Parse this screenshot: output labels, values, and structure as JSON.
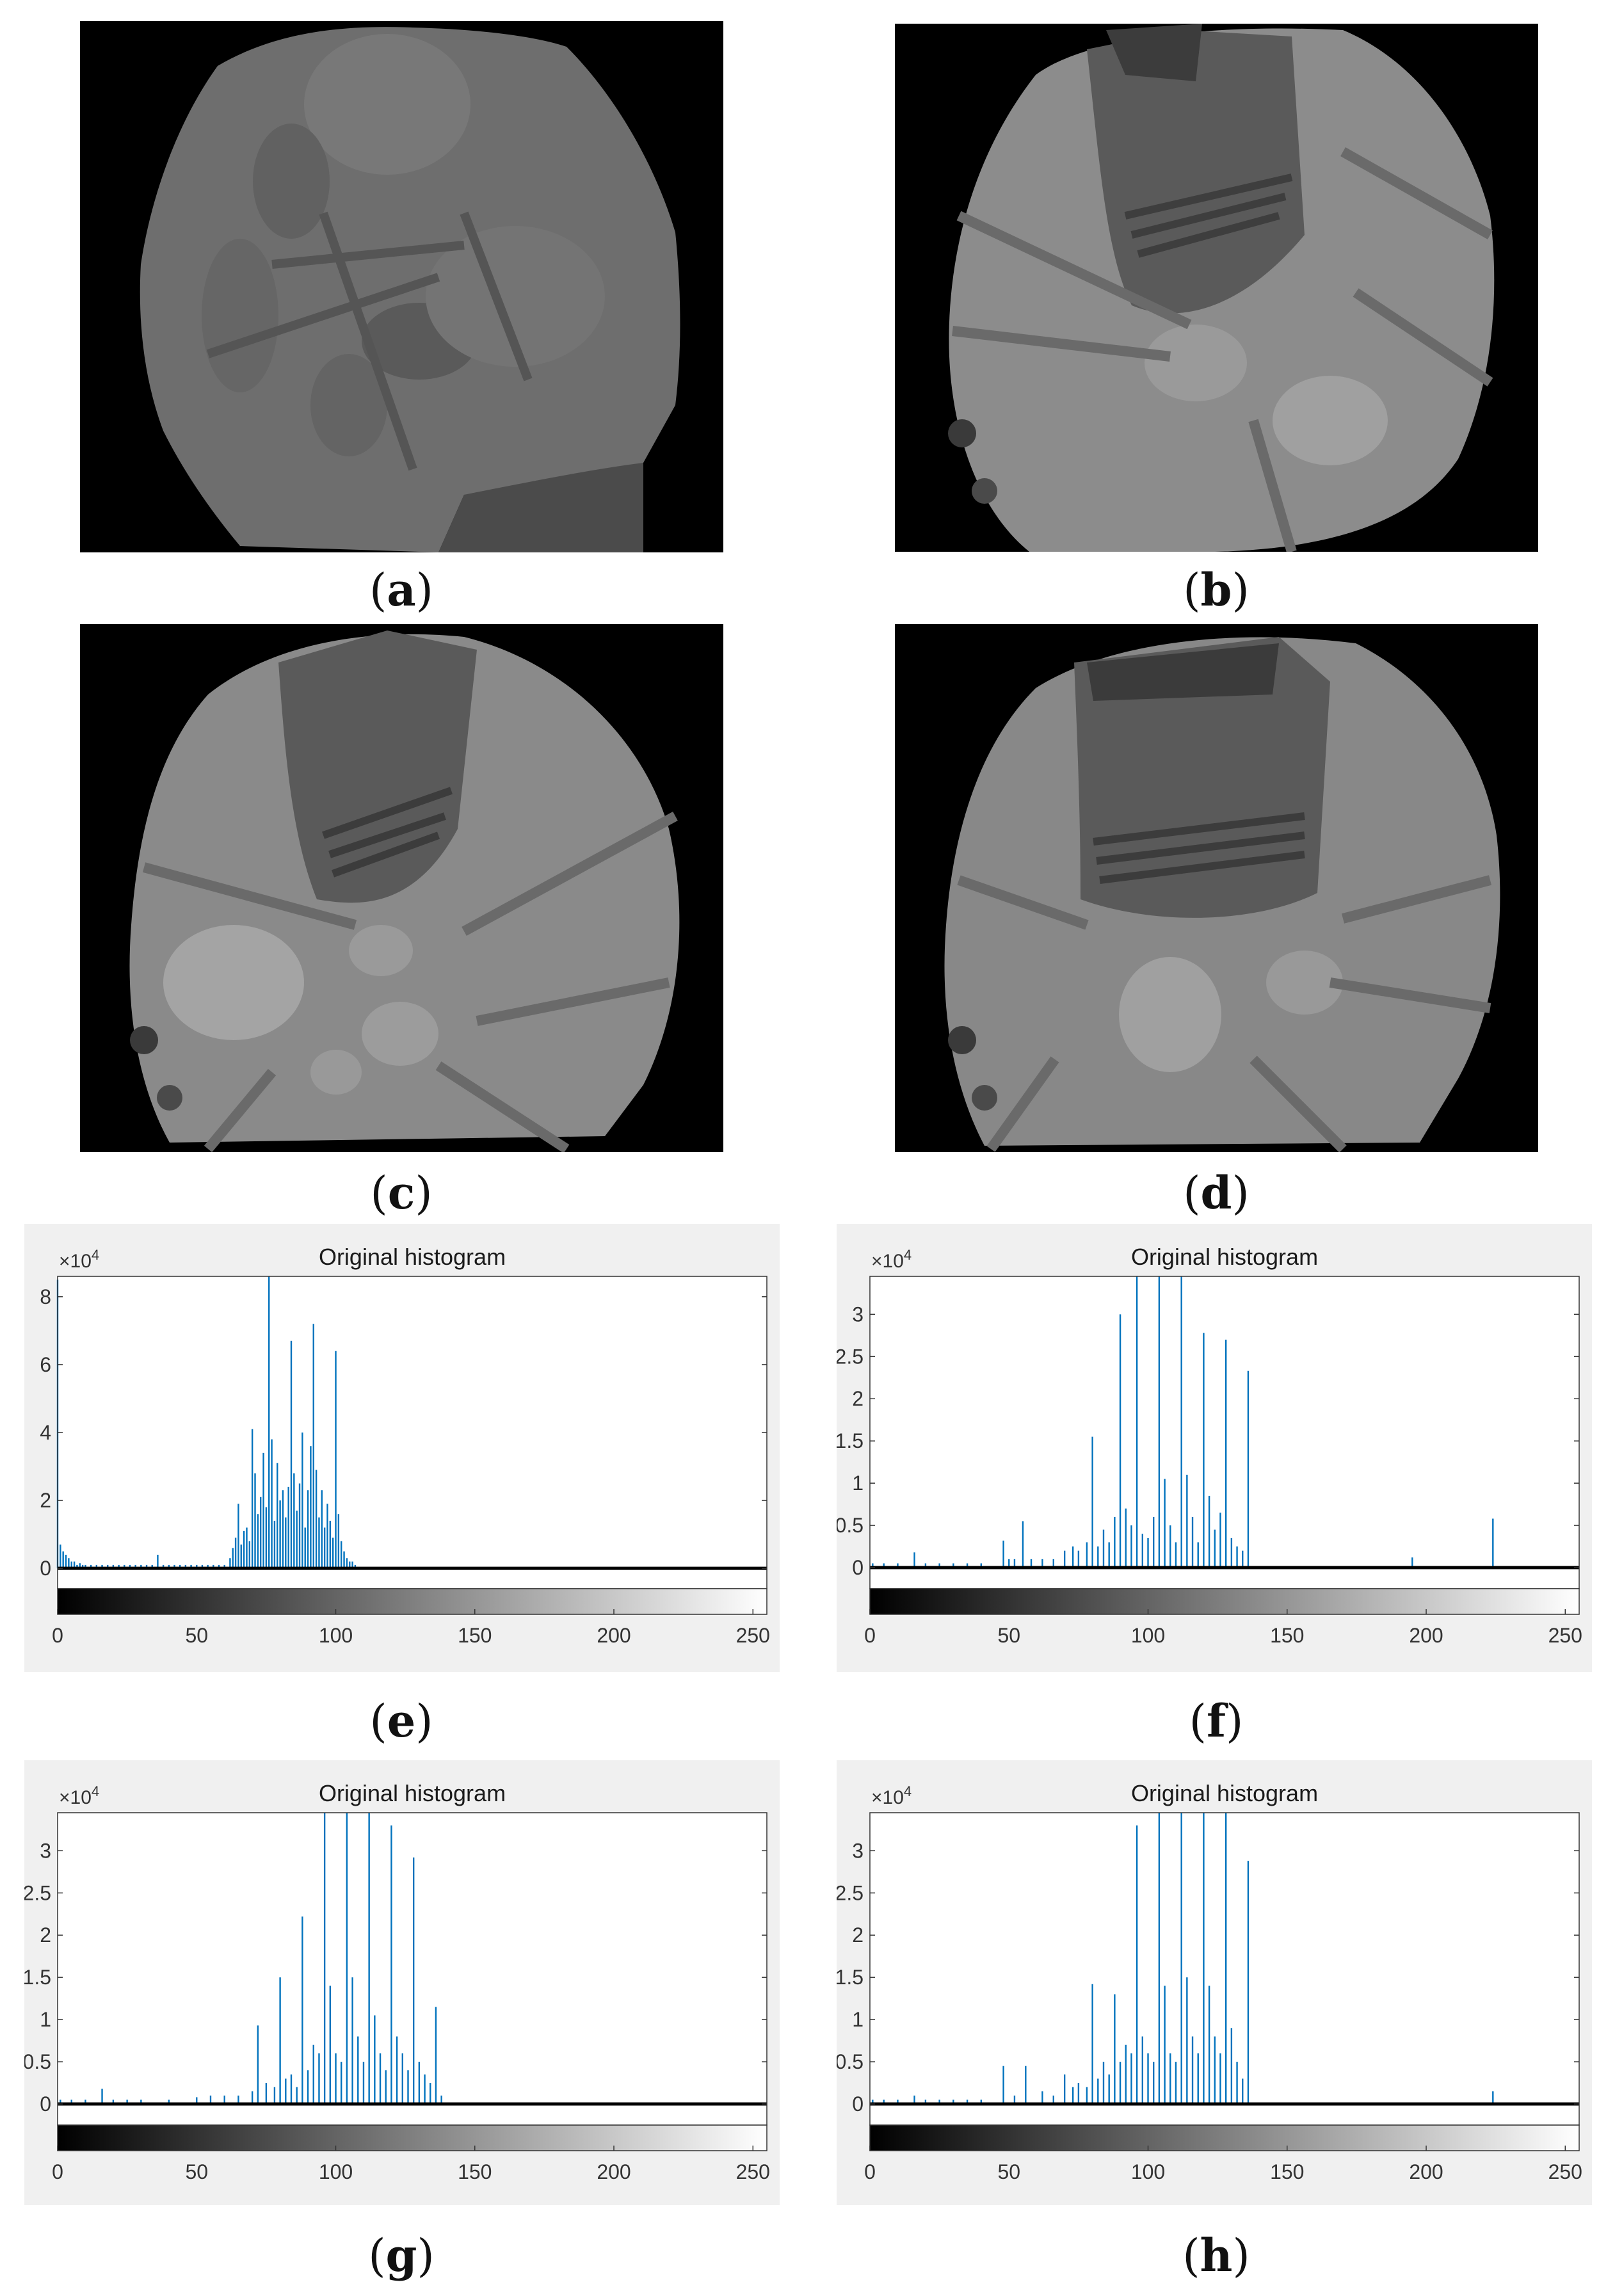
{
  "captions": {
    "a": "a",
    "b": "b",
    "c": "c",
    "d": "d",
    "e": "e",
    "f": "f",
    "g": "g",
    "h": "h"
  },
  "colors": {
    "bar": "#0072bd",
    "panel": "#f0f0f0",
    "photo_bg": "#000000"
  },
  "chart_data": [
    {
      "panel": "e",
      "type": "bar",
      "title": "Original histogram",
      "multiplier": "×10",
      "multiplier_exp": "4",
      "xlim": [
        0,
        255
      ],
      "ylim": [
        -0.6,
        8.6
      ],
      "xticks": [
        0,
        50,
        100,
        150,
        200,
        250
      ],
      "yticks": [
        0,
        2,
        4,
        6,
        8
      ],
      "ytick_labels": [
        "0",
        "2",
        "4",
        "6",
        "8"
      ],
      "bins": [
        0,
        1,
        2,
        3,
        4,
        5,
        6,
        7,
        8,
        9,
        10,
        12,
        14,
        16,
        18,
        20,
        22,
        24,
        26,
        28,
        30,
        32,
        34,
        36,
        38,
        40,
        42,
        44,
        46,
        48,
        50,
        52,
        54,
        56,
        58,
        60,
        62,
        63,
        64,
        65,
        66,
        67,
        68,
        69,
        70,
        71,
        72,
        73,
        74,
        75,
        76,
        77,
        78,
        79,
        80,
        81,
        82,
        83,
        84,
        85,
        86,
        87,
        88,
        89,
        90,
        91,
        92,
        93,
        94,
        95,
        96,
        97,
        98,
        99,
        100,
        101,
        102,
        103,
        104,
        105,
        106,
        107
      ],
      "values": [
        8.5,
        0.7,
        0.5,
        0.4,
        0.3,
        0.2,
        0.2,
        0.1,
        0.15,
        0.1,
        0.1,
        0.1,
        0.1,
        0.1,
        0.1,
        0.1,
        0.1,
        0.1,
        0.1,
        0.1,
        0.1,
        0.1,
        0.1,
        0.4,
        0.1,
        0.1,
        0.1,
        0.1,
        0.1,
        0.1,
        0.1,
        0.1,
        0.1,
        0.1,
        0.1,
        0.1,
        0.3,
        0.6,
        0.9,
        1.9,
        0.7,
        1.1,
        1.2,
        0.8,
        4.1,
        2.8,
        1.6,
        2.1,
        3.4,
        1.8,
        8.6,
        3.8,
        1.4,
        3.1,
        2.0,
        2.3,
        1.5,
        2.4,
        6.7,
        2.8,
        1.7,
        2.5,
        4.0,
        1.2,
        2.3,
        3.6,
        7.2,
        2.9,
        1.5,
        2.3,
        1.2,
        1.9,
        1.4,
        0.9,
        6.4,
        1.6,
        0.8,
        0.5,
        0.3,
        0.2,
        0.2,
        0.1
      ]
    },
    {
      "panel": "f",
      "type": "bar",
      "title": "Original histogram",
      "multiplier": "×10",
      "multiplier_exp": "4",
      "xlim": [
        0,
        255
      ],
      "ylim": [
        -0.25,
        3.45
      ],
      "xticks": [
        0,
        50,
        100,
        150,
        200,
        250
      ],
      "yticks": [
        0,
        0.5,
        1,
        1.5,
        2,
        2.5,
        3
      ],
      "ytick_labels": [
        "0",
        "0.5",
        "1",
        "1.5",
        "2",
        "2.5",
        "3"
      ],
      "bins": [
        1,
        5,
        10,
        16,
        20,
        25,
        30,
        35,
        40,
        48,
        50,
        52,
        55,
        58,
        62,
        66,
        70,
        73,
        75,
        78,
        80,
        82,
        84,
        86,
        88,
        90,
        92,
        94,
        96,
        98,
        100,
        102,
        104,
        106,
        108,
        110,
        112,
        114,
        116,
        118,
        120,
        122,
        124,
        126,
        128,
        130,
        132,
        134,
        136,
        195,
        224
      ],
      "values": [
        0.05,
        0.05,
        0.05,
        0.18,
        0.05,
        0.05,
        0.05,
        0.05,
        0.05,
        0.32,
        0.1,
        0.1,
        0.55,
        0.1,
        0.1,
        0.1,
        0.2,
        0.25,
        0.2,
        0.3,
        1.55,
        0.25,
        0.45,
        0.3,
        0.6,
        3.0,
        0.7,
        0.5,
        3.45,
        0.4,
        0.35,
        0.6,
        3.45,
        1.05,
        0.5,
        0.3,
        3.45,
        1.1,
        0.6,
        0.3,
        2.78,
        0.85,
        0.45,
        0.65,
        2.7,
        0.35,
        0.25,
        0.2,
        2.33,
        0.12,
        0.58
      ]
    },
    {
      "panel": "g",
      "type": "bar",
      "title": "Original histogram",
      "multiplier": "×10",
      "multiplier_exp": "4",
      "xlim": [
        0,
        255
      ],
      "ylim": [
        -0.25,
        3.45
      ],
      "xticks": [
        0,
        50,
        100,
        150,
        200,
        250
      ],
      "yticks": [
        0,
        0.5,
        1,
        1.5,
        2,
        2.5,
        3
      ],
      "ytick_labels": [
        "0",
        "0.5",
        "1",
        "1.5",
        "2",
        "2.5",
        "3"
      ],
      "bins": [
        1,
        5,
        10,
        16,
        20,
        25,
        30,
        40,
        50,
        55,
        60,
        65,
        70,
        72,
        75,
        78,
        80,
        82,
        84,
        86,
        88,
        90,
        92,
        94,
        96,
        98,
        100,
        102,
        104,
        106,
        108,
        110,
        112,
        114,
        116,
        118,
        120,
        122,
        124,
        126,
        128,
        130,
        132,
        134,
        136,
        138
      ],
      "values": [
        0.05,
        0.05,
        0.05,
        0.18,
        0.05,
        0.05,
        0.05,
        0.05,
        0.08,
        0.1,
        0.1,
        0.1,
        0.15,
        0.93,
        0.25,
        0.2,
        1.5,
        0.3,
        0.35,
        0.2,
        2.22,
        0.4,
        0.7,
        0.6,
        3.45,
        1.4,
        0.6,
        0.5,
        3.45,
        1.5,
        0.8,
        0.5,
        3.45,
        1.05,
        0.6,
        0.4,
        3.3,
        0.8,
        0.6,
        0.4,
        2.92,
        0.5,
        0.35,
        0.25,
        1.15,
        0.1
      ]
    },
    {
      "panel": "h",
      "type": "bar",
      "title": "Original histogram",
      "multiplier": "×10",
      "multiplier_exp": "4",
      "xlim": [
        0,
        255
      ],
      "ylim": [
        -0.25,
        3.45
      ],
      "xticks": [
        0,
        50,
        100,
        150,
        200,
        250
      ],
      "yticks": [
        0,
        0.5,
        1,
        1.5,
        2,
        2.5,
        3
      ],
      "ytick_labels": [
        "0",
        "0.5",
        "1",
        "1.5",
        "2",
        "2.5",
        "3"
      ],
      "bins": [
        1,
        5,
        10,
        16,
        20,
        25,
        30,
        35,
        40,
        48,
        52,
        56,
        62,
        66,
        70,
        73,
        75,
        78,
        80,
        82,
        84,
        86,
        88,
        90,
        92,
        94,
        96,
        98,
        100,
        102,
        104,
        106,
        108,
        110,
        112,
        114,
        116,
        118,
        120,
        122,
        124,
        126,
        128,
        130,
        132,
        134,
        136,
        224
      ],
      "values": [
        0.05,
        0.05,
        0.05,
        0.1,
        0.05,
        0.05,
        0.05,
        0.05,
        0.05,
        0.45,
        0.1,
        0.45,
        0.15,
        0.1,
        0.35,
        0.2,
        0.25,
        0.2,
        1.42,
        0.3,
        0.5,
        0.35,
        1.3,
        0.5,
        0.7,
        0.6,
        3.3,
        0.8,
        0.6,
        0.5,
        3.45,
        1.4,
        0.6,
        0.5,
        3.45,
        1.5,
        0.8,
        0.6,
        3.45,
        1.4,
        0.8,
        0.6,
        3.45,
        0.9,
        0.5,
        0.3,
        2.88,
        0.15
      ]
    }
  ]
}
